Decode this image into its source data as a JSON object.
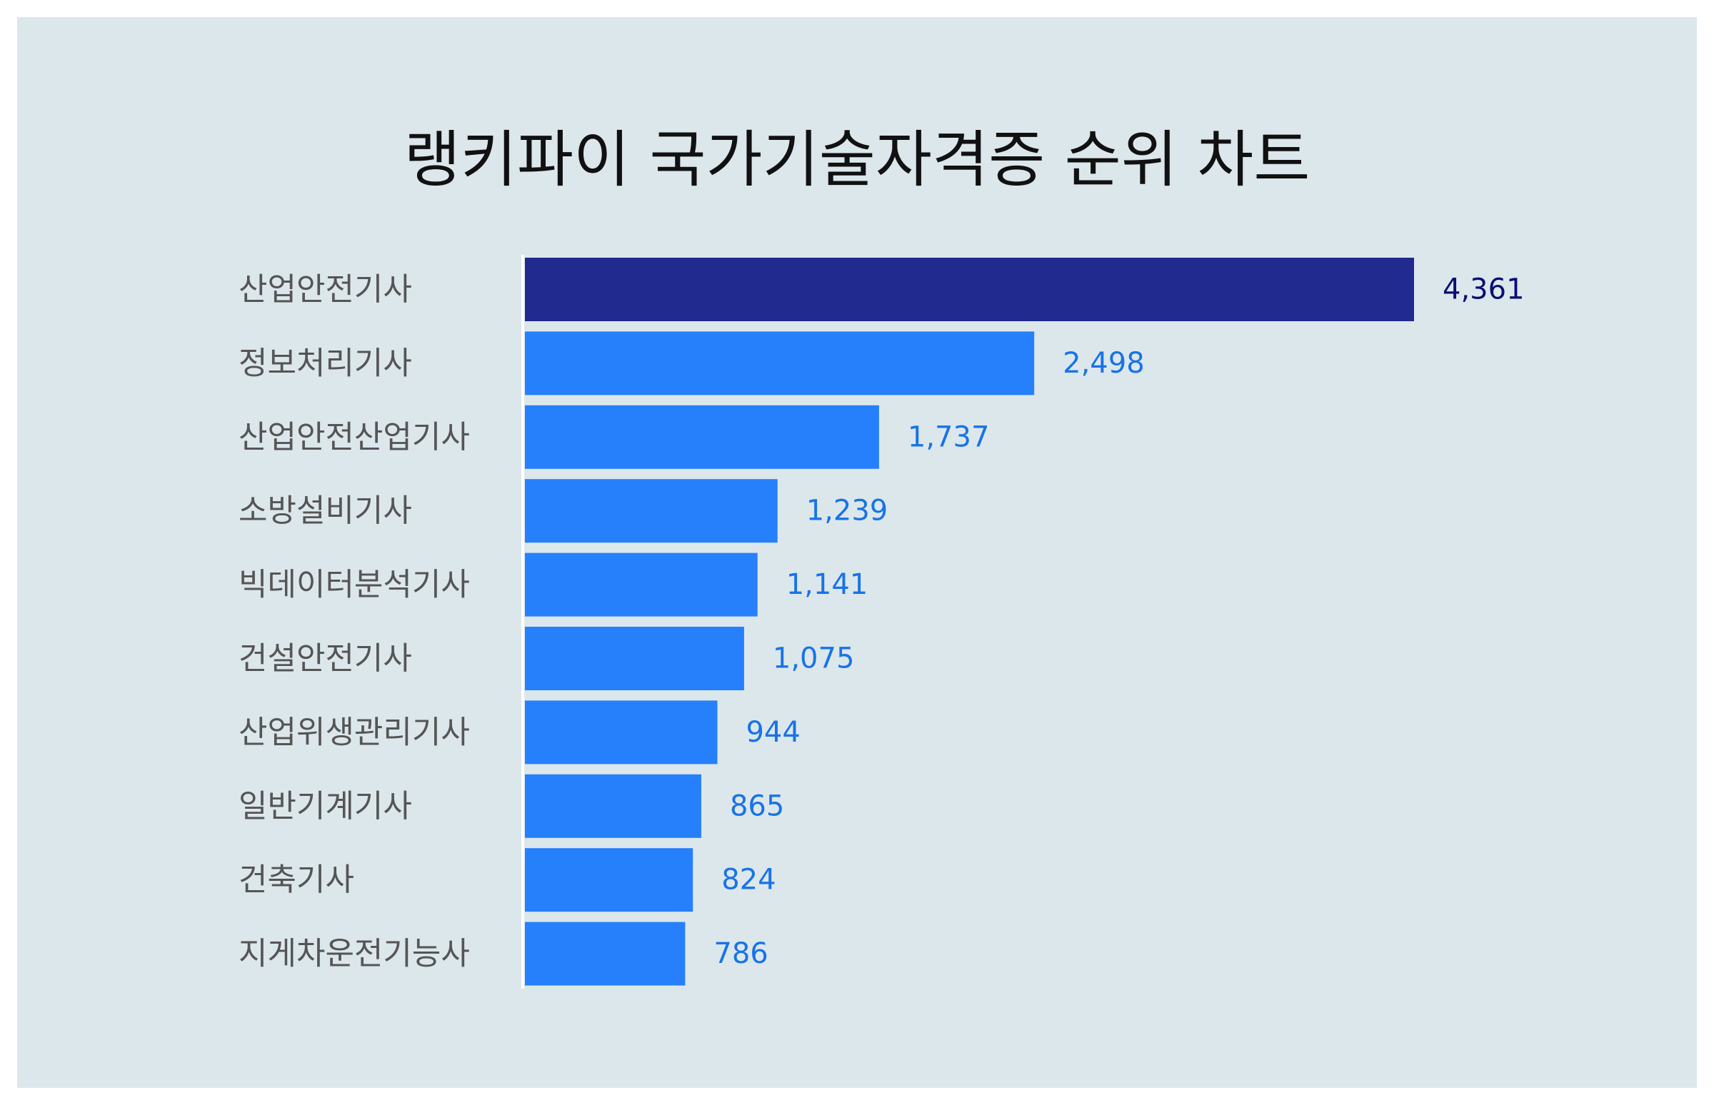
{
  "chart_data": {
    "type": "bar",
    "orientation": "horizontal",
    "title": "랭키파이 국가기술자격증 순위 차트",
    "xlabel": "",
    "ylabel": "",
    "categories": [
      "산업안전기사",
      "정보처리기사",
      "산업안전산업기사",
      "소방설비기사",
      "빅데이터분석기사",
      "건설안전기사",
      "산업위생관리기사",
      "일반기계기사",
      "건축기사",
      "지게차운전기능사"
    ],
    "values": [
      4361,
      2498,
      1737,
      1239,
      1141,
      1075,
      944,
      865,
      824,
      786
    ],
    "value_labels": [
      "4,361",
      "2,498",
      "1,737",
      "1,239",
      "1,141",
      "1,075",
      "944",
      "865",
      "824",
      "786"
    ],
    "xlim": [
      0,
      4361
    ],
    "grid": false,
    "legend": "none",
    "colors": {
      "top_bar": "#212a8f",
      "bar": "#2680fb",
      "top_label": "#0b0e72",
      "label": "#1873e6",
      "axis": "#ffffff",
      "background": "#dce7ec"
    }
  }
}
